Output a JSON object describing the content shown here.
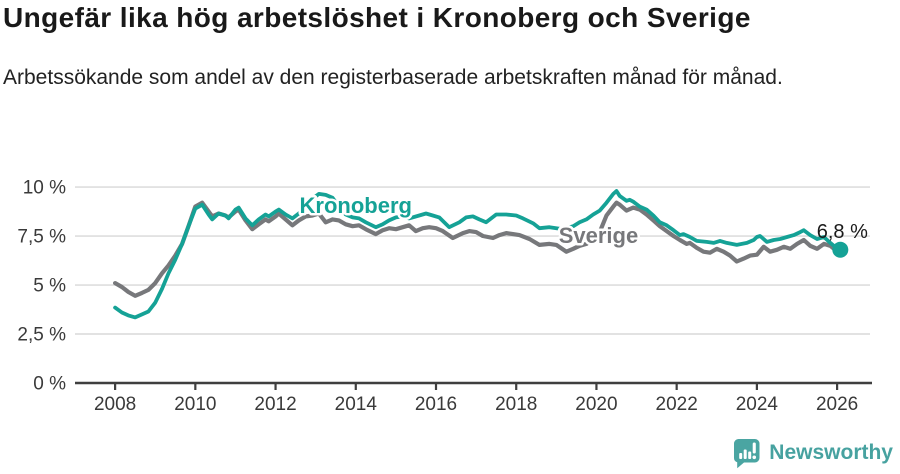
{
  "header": {
    "title": "Ungefär lika hög arbetslöshet i Kronoberg och Sverige",
    "subtitle": "Arbetssökande som andel av den registerbaserade arbetskraften månad för månad."
  },
  "chart_data": {
    "type": "line",
    "x_unit": "decimal_year",
    "xlim": [
      2007.0,
      2026.82
    ],
    "ylim": [
      0,
      10.87
    ],
    "grid": true,
    "legend": "inline-labels",
    "x_ticks": [
      {
        "value": 2008,
        "label": "2008"
      },
      {
        "value": 2010,
        "label": "2010"
      },
      {
        "value": 2012,
        "label": "2012"
      },
      {
        "value": 2014,
        "label": "2014"
      },
      {
        "value": 2016,
        "label": "2016"
      },
      {
        "value": 2018,
        "label": "2018"
      },
      {
        "value": 2020,
        "label": "2020"
      },
      {
        "value": 2022,
        "label": "2022"
      },
      {
        "value": 2024,
        "label": "2024"
      },
      {
        "value": 2026,
        "label": "2026"
      }
    ],
    "y_ticks": [
      {
        "value": 0,
        "label": "0 %"
      },
      {
        "value": 2.5,
        "label": "2,5 %"
      },
      {
        "value": 5,
        "label": "5 %"
      },
      {
        "value": 7.5,
        "label": "7,5 %"
      },
      {
        "value": 10,
        "label": "10 %"
      }
    ],
    "series": [
      {
        "name": "Sverige",
        "color": "#77787B",
        "label": {
          "text": "Sverige",
          "x": 2020.05,
          "y": 7.5
        },
        "points": [
          [
            2008.0,
            5.1
          ],
          [
            2008.17,
            4.9
          ],
          [
            2008.33,
            4.65
          ],
          [
            2008.5,
            4.45
          ],
          [
            2008.67,
            4.6
          ],
          [
            2008.83,
            4.75
          ],
          [
            2009.0,
            5.1
          ],
          [
            2009.17,
            5.6
          ],
          [
            2009.33,
            6.0
          ],
          [
            2009.5,
            6.5
          ],
          [
            2009.67,
            7.1
          ],
          [
            2009.83,
            8.0
          ],
          [
            2010.0,
            9.0
          ],
          [
            2010.17,
            9.2
          ],
          [
            2010.33,
            8.75
          ],
          [
            2010.42,
            8.5
          ],
          [
            2010.58,
            8.65
          ],
          [
            2010.75,
            8.55
          ],
          [
            2010.83,
            8.45
          ],
          [
            2011.0,
            8.75
          ],
          [
            2011.08,
            8.85
          ],
          [
            2011.25,
            8.3
          ],
          [
            2011.42,
            7.85
          ],
          [
            2011.58,
            8.1
          ],
          [
            2011.75,
            8.35
          ],
          [
            2011.83,
            8.25
          ],
          [
            2012.0,
            8.5
          ],
          [
            2012.08,
            8.65
          ],
          [
            2012.25,
            8.35
          ],
          [
            2012.42,
            8.05
          ],
          [
            2012.58,
            8.3
          ],
          [
            2012.75,
            8.5
          ],
          [
            2012.92,
            8.55
          ],
          [
            2013.08,
            8.65
          ],
          [
            2013.25,
            8.2
          ],
          [
            2013.42,
            8.35
          ],
          [
            2013.58,
            8.3
          ],
          [
            2013.75,
            8.1
          ],
          [
            2013.92,
            8.0
          ],
          [
            2014.08,
            8.05
          ],
          [
            2014.25,
            7.85
          ],
          [
            2014.5,
            7.6
          ],
          [
            2014.67,
            7.8
          ],
          [
            2014.83,
            7.9
          ],
          [
            2015.0,
            7.85
          ],
          [
            2015.17,
            7.95
          ],
          [
            2015.33,
            8.05
          ],
          [
            2015.5,
            7.75
          ],
          [
            2015.67,
            7.9
          ],
          [
            2015.83,
            7.95
          ],
          [
            2016.0,
            7.9
          ],
          [
            2016.17,
            7.75
          ],
          [
            2016.42,
            7.4
          ],
          [
            2016.67,
            7.65
          ],
          [
            2016.83,
            7.75
          ],
          [
            2017.0,
            7.7
          ],
          [
            2017.17,
            7.5
          ],
          [
            2017.42,
            7.4
          ],
          [
            2017.58,
            7.55
          ],
          [
            2017.75,
            7.65
          ],
          [
            2017.92,
            7.6
          ],
          [
            2018.08,
            7.55
          ],
          [
            2018.33,
            7.35
          ],
          [
            2018.58,
            7.05
          ],
          [
            2018.83,
            7.1
          ],
          [
            2019.0,
            7.05
          ],
          [
            2019.25,
            6.7
          ],
          [
            2019.42,
            6.85
          ],
          [
            2019.58,
            7.0
          ],
          [
            2019.75,
            7.1
          ],
          [
            2019.92,
            7.35
          ],
          [
            2020.08,
            7.7
          ],
          [
            2020.25,
            8.55
          ],
          [
            2020.42,
            9.0
          ],
          [
            2020.5,
            9.2
          ],
          [
            2020.58,
            9.1
          ],
          [
            2020.75,
            8.8
          ],
          [
            2020.92,
            8.95
          ],
          [
            2021.08,
            8.85
          ],
          [
            2021.25,
            8.6
          ],
          [
            2021.42,
            8.3
          ],
          [
            2021.58,
            8.0
          ],
          [
            2021.75,
            7.75
          ],
          [
            2021.92,
            7.5
          ],
          [
            2022.08,
            7.3
          ],
          [
            2022.25,
            7.1
          ],
          [
            2022.33,
            7.15
          ],
          [
            2022.5,
            6.9
          ],
          [
            2022.67,
            6.7
          ],
          [
            2022.83,
            6.65
          ],
          [
            2023.0,
            6.85
          ],
          [
            2023.17,
            6.7
          ],
          [
            2023.33,
            6.5
          ],
          [
            2023.5,
            6.2
          ],
          [
            2023.67,
            6.35
          ],
          [
            2023.83,
            6.5
          ],
          [
            2024.0,
            6.55
          ],
          [
            2024.17,
            6.95
          ],
          [
            2024.33,
            6.7
          ],
          [
            2024.5,
            6.8
          ],
          [
            2024.67,
            6.95
          ],
          [
            2024.83,
            6.85
          ],
          [
            2025.0,
            7.1
          ],
          [
            2025.17,
            7.3
          ],
          [
            2025.33,
            7.0
          ],
          [
            2025.5,
            6.85
          ],
          [
            2025.67,
            7.1
          ],
          [
            2025.83,
            7.0
          ],
          [
            2025.92,
            6.85
          ],
          [
            2026.08,
            6.7
          ]
        ]
      },
      {
        "name": "Kronoberg",
        "color": "#15A296",
        "label": {
          "text": "Kronoberg",
          "x": 2014.0,
          "y": 9.03
        },
        "points": [
          [
            2008.0,
            3.85
          ],
          [
            2008.17,
            3.6
          ],
          [
            2008.33,
            3.45
          ],
          [
            2008.5,
            3.35
          ],
          [
            2008.67,
            3.5
          ],
          [
            2008.83,
            3.65
          ],
          [
            2009.0,
            4.1
          ],
          [
            2009.17,
            4.8
          ],
          [
            2009.33,
            5.6
          ],
          [
            2009.5,
            6.3
          ],
          [
            2009.67,
            7.1
          ],
          [
            2009.83,
            8.0
          ],
          [
            2010.0,
            8.9
          ],
          [
            2010.17,
            9.1
          ],
          [
            2010.33,
            8.6
          ],
          [
            2010.42,
            8.35
          ],
          [
            2010.58,
            8.65
          ],
          [
            2010.75,
            8.55
          ],
          [
            2010.83,
            8.4
          ],
          [
            2011.0,
            8.85
          ],
          [
            2011.08,
            8.95
          ],
          [
            2011.25,
            8.4
          ],
          [
            2011.42,
            8.05
          ],
          [
            2011.58,
            8.35
          ],
          [
            2011.75,
            8.6
          ],
          [
            2011.83,
            8.5
          ],
          [
            2012.0,
            8.75
          ],
          [
            2012.08,
            8.85
          ],
          [
            2012.25,
            8.6
          ],
          [
            2012.42,
            8.4
          ],
          [
            2012.58,
            8.65
          ],
          [
            2012.75,
            9.0
          ],
          [
            2012.92,
            9.4
          ],
          [
            2013.08,
            9.65
          ],
          [
            2013.25,
            9.6
          ],
          [
            2013.42,
            9.45
          ],
          [
            2013.58,
            9.0
          ],
          [
            2013.75,
            8.6
          ],
          [
            2013.92,
            8.45
          ],
          [
            2014.08,
            8.4
          ],
          [
            2014.25,
            8.2
          ],
          [
            2014.5,
            7.95
          ],
          [
            2014.67,
            8.1
          ],
          [
            2014.83,
            8.3
          ],
          [
            2015.0,
            8.45
          ],
          [
            2015.17,
            8.5
          ],
          [
            2015.33,
            8.4
          ],
          [
            2015.58,
            8.55
          ],
          [
            2015.75,
            8.65
          ],
          [
            2015.92,
            8.55
          ],
          [
            2016.08,
            8.45
          ],
          [
            2016.33,
            7.95
          ],
          [
            2016.58,
            8.2
          ],
          [
            2016.75,
            8.45
          ],
          [
            2016.92,
            8.5
          ],
          [
            2017.08,
            8.35
          ],
          [
            2017.25,
            8.2
          ],
          [
            2017.5,
            8.6
          ],
          [
            2017.75,
            8.6
          ],
          [
            2018.0,
            8.55
          ],
          [
            2018.17,
            8.4
          ],
          [
            2018.42,
            8.15
          ],
          [
            2018.58,
            7.9
          ],
          [
            2018.83,
            7.95
          ],
          [
            2019.0,
            7.9
          ],
          [
            2019.17,
            7.85
          ],
          [
            2019.42,
            8.0
          ],
          [
            2019.58,
            8.2
          ],
          [
            2019.75,
            8.35
          ],
          [
            2019.92,
            8.6
          ],
          [
            2020.08,
            8.8
          ],
          [
            2020.25,
            9.2
          ],
          [
            2020.42,
            9.65
          ],
          [
            2020.5,
            9.8
          ],
          [
            2020.58,
            9.55
          ],
          [
            2020.75,
            9.3
          ],
          [
            2020.83,
            9.35
          ],
          [
            2020.92,
            9.25
          ],
          [
            2021.08,
            9.0
          ],
          [
            2021.25,
            8.85
          ],
          [
            2021.42,
            8.55
          ],
          [
            2021.58,
            8.2
          ],
          [
            2021.75,
            8.05
          ],
          [
            2021.92,
            7.8
          ],
          [
            2022.08,
            7.55
          ],
          [
            2022.17,
            7.6
          ],
          [
            2022.33,
            7.45
          ],
          [
            2022.5,
            7.25
          ],
          [
            2022.75,
            7.2
          ],
          [
            2022.92,
            7.15
          ],
          [
            2023.08,
            7.25
          ],
          [
            2023.25,
            7.15
          ],
          [
            2023.5,
            7.05
          ],
          [
            2023.75,
            7.15
          ],
          [
            2023.92,
            7.3
          ],
          [
            2024.0,
            7.45
          ],
          [
            2024.08,
            7.5
          ],
          [
            2024.25,
            7.2
          ],
          [
            2024.42,
            7.3
          ],
          [
            2024.58,
            7.35
          ],
          [
            2024.75,
            7.45
          ],
          [
            2024.92,
            7.55
          ],
          [
            2025.08,
            7.7
          ],
          [
            2025.17,
            7.8
          ],
          [
            2025.33,
            7.55
          ],
          [
            2025.5,
            7.35
          ],
          [
            2025.67,
            7.45
          ],
          [
            2025.83,
            7.15
          ],
          [
            2025.92,
            7.0
          ],
          [
            2026.08,
            6.8
          ]
        ]
      }
    ],
    "end_annotation": {
      "series": "Kronoberg",
      "label": "6,8 %",
      "x": 2026.08,
      "y": 6.8,
      "label_x": 2026.13,
      "label_y": 7.4
    }
  },
  "footer": {
    "brand": "Newsworthy"
  },
  "colors": {
    "kronoberg_line": "#15A296",
    "sverige_line": "#77787B",
    "gridline": "#D8D8D8",
    "axis": "#3F3F3F",
    "title_text": "#191919",
    "brand_teal": "#47A2A0",
    "end_dot": "#15A296"
  }
}
